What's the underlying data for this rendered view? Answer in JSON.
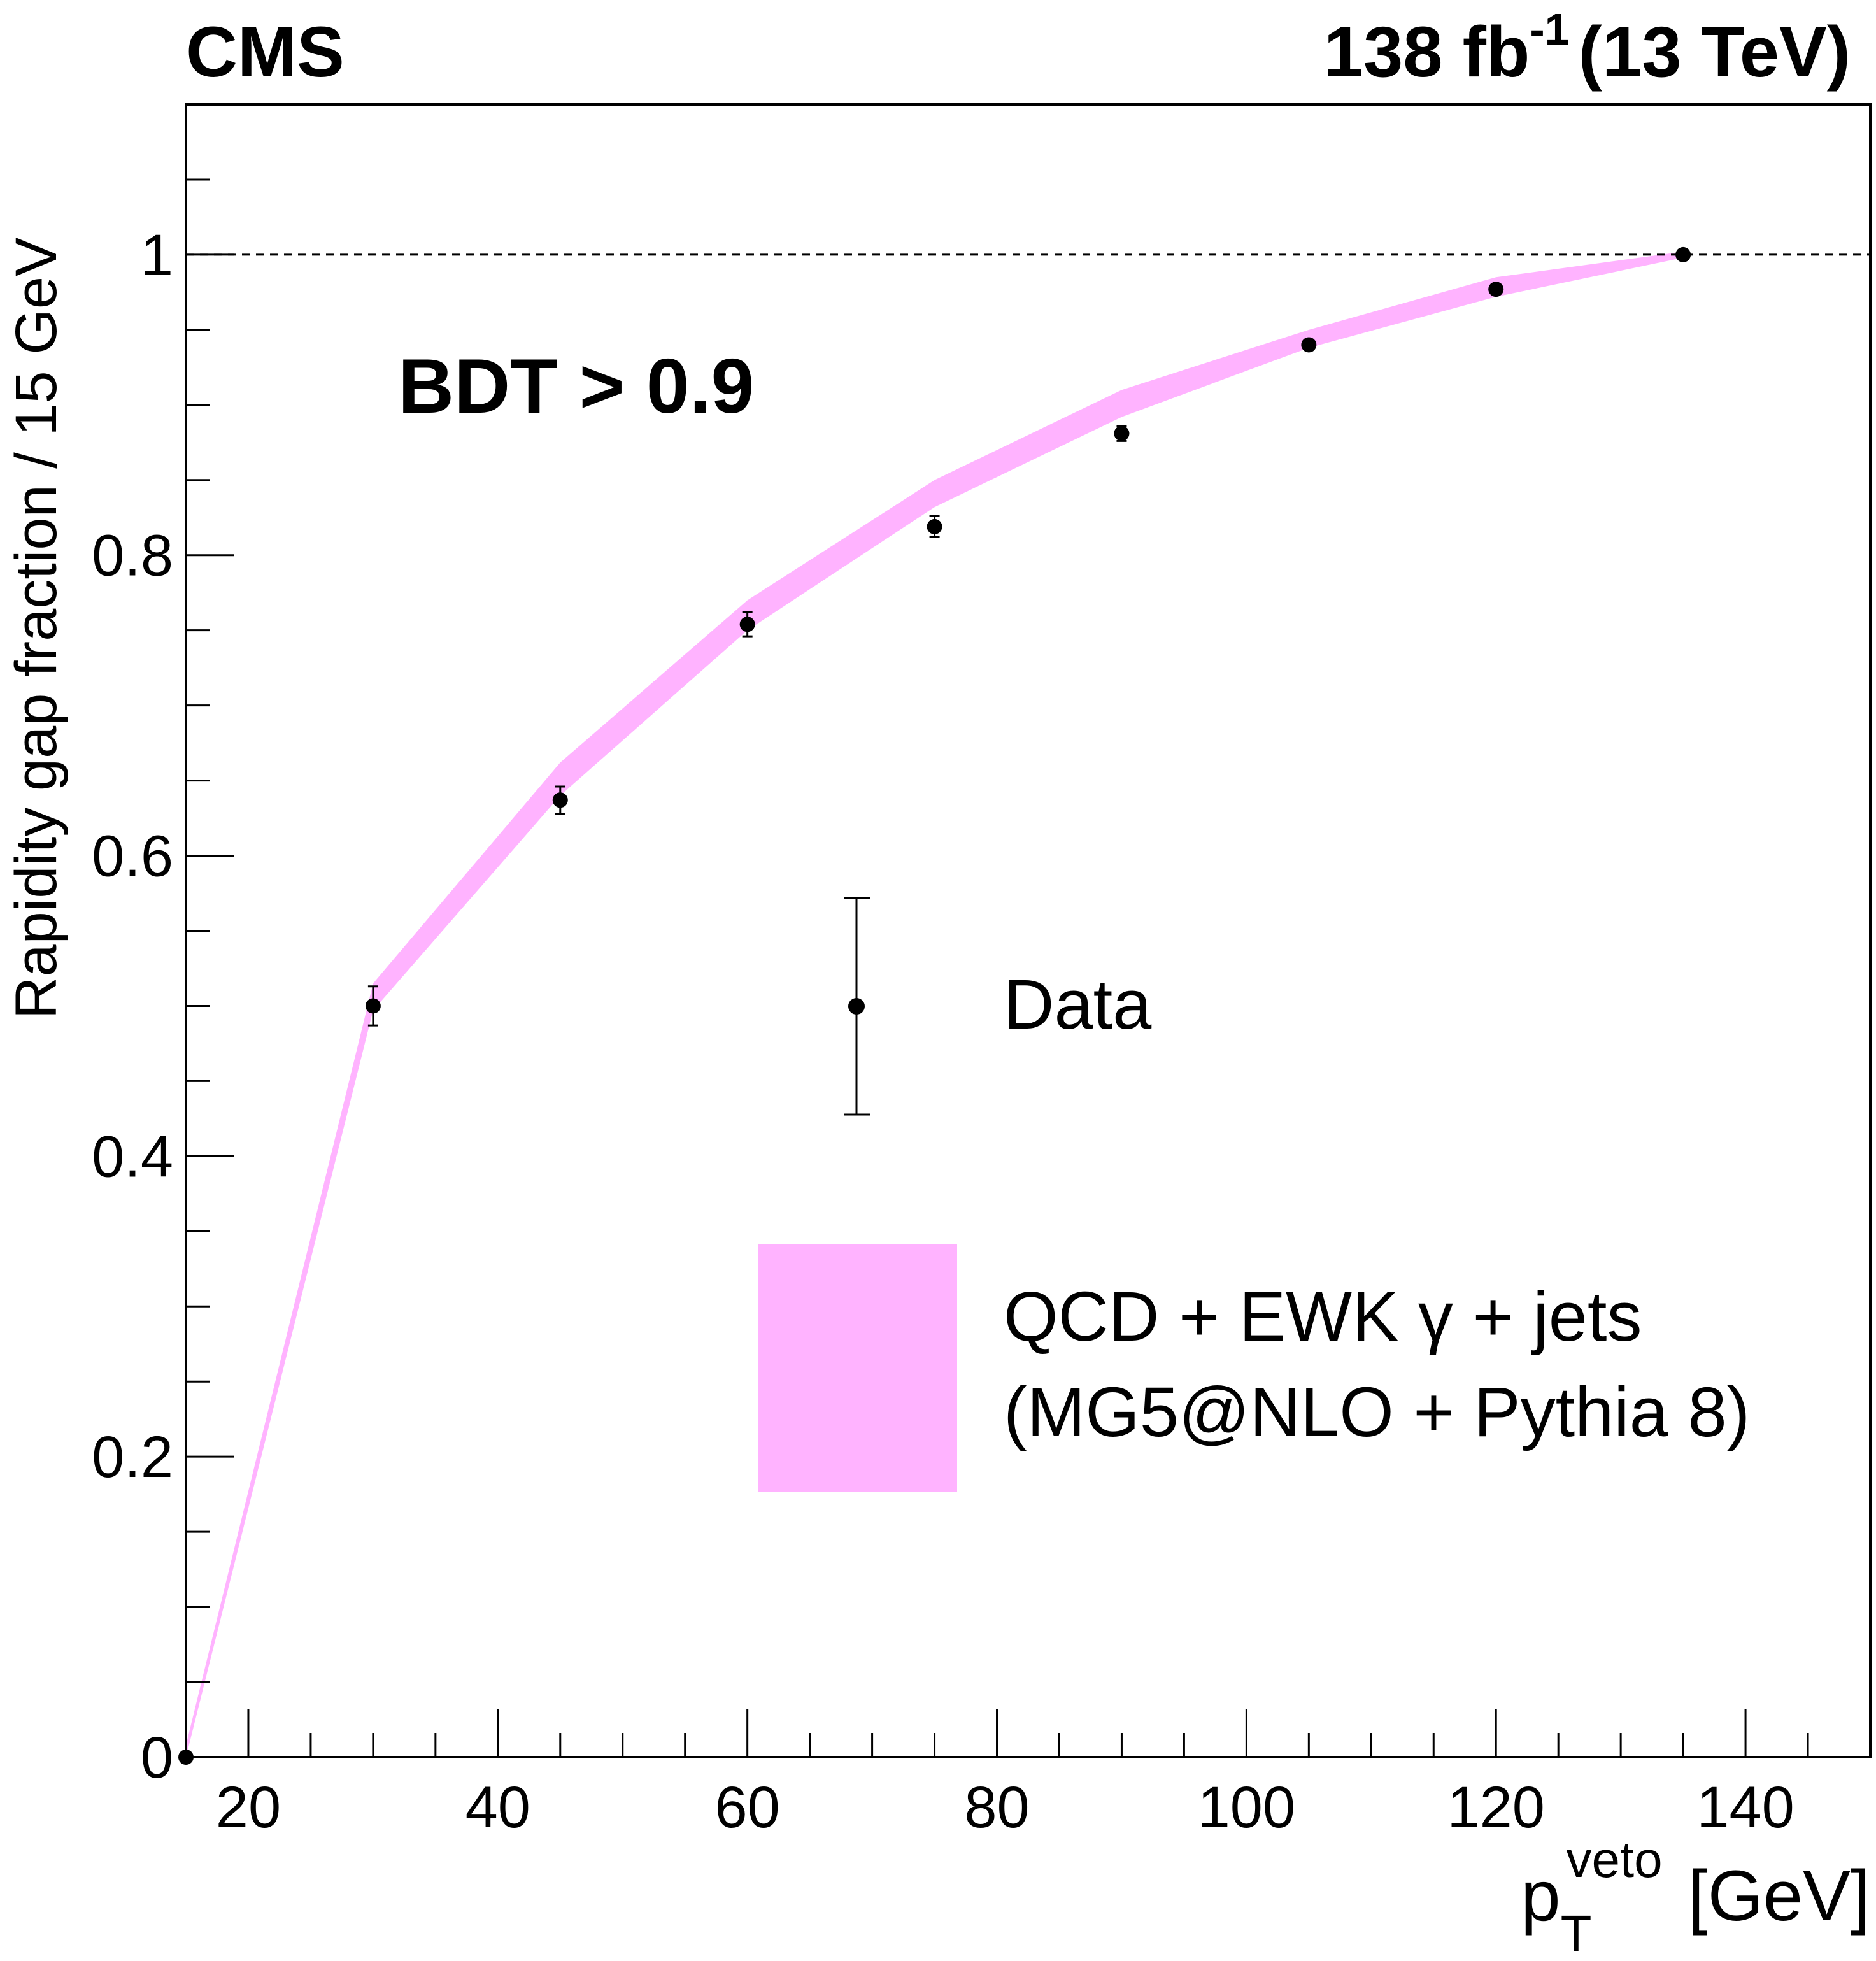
{
  "header": {
    "experiment": "CMS",
    "lumi_value": "138 fb",
    "lumi_exponent": "-1",
    "energy": "(13 TeV)"
  },
  "annotation": "BDT > 0.9",
  "legend": {
    "data_label": "Data",
    "band_label_line1": "QCD + EWK γ + jets",
    "band_label_line2": "(MG5@NLO + Pythia 8)"
  },
  "colors": {
    "band": "#ffb3ff",
    "data": "#000000"
  },
  "chart_data": {
    "type": "line",
    "title": "",
    "ylabel": "Rapidity gap fraction / 15 GeV",
    "xlabel_main": "p",
    "xlabel_sub": "T",
    "xlabel_sup": "veto",
    "xlabel_unit": "[GeV]",
    "xlim": [
      15,
      150
    ],
    "ylim": [
      0,
      1.1
    ],
    "x_ticks": [
      20,
      40,
      60,
      80,
      100,
      120,
      140
    ],
    "x_tick_labels": [
      "20",
      "40",
      "60",
      "80",
      "100",
      "120",
      "140"
    ],
    "y_ticks": [
      0,
      0.2,
      0.4,
      0.6,
      0.8,
      1
    ],
    "y_tick_labels": [
      "0",
      "0.2",
      "0.4",
      "0.6",
      "0.8",
      "1"
    ],
    "reference_line_y": 1,
    "series": [
      {
        "name": "Data",
        "x": [
          15,
          30,
          45,
          60,
          75,
          90,
          105,
          120,
          135
        ],
        "y": [
          0.0,
          0.5,
          0.637,
          0.754,
          0.819,
          0.881,
          0.94,
          0.977,
          1.0
        ],
        "err": [
          0.0,
          0.013,
          0.009,
          0.008,
          0.007,
          0.005,
          0.003,
          0.002,
          0.0
        ]
      },
      {
        "name": "QCD + EWK γ + jets (MG5@NLO + Pythia 8)",
        "x": [
          15,
          30,
          45,
          60,
          75,
          90,
          105,
          120,
          135
        ],
        "y_low": [
          0.0,
          0.497,
          0.64,
          0.75,
          0.832,
          0.892,
          0.938,
          0.972,
          0.998
        ],
        "y_high": [
          0.008,
          0.515,
          0.662,
          0.77,
          0.85,
          0.91,
          0.95,
          0.985,
          1.002
        ]
      }
    ]
  }
}
